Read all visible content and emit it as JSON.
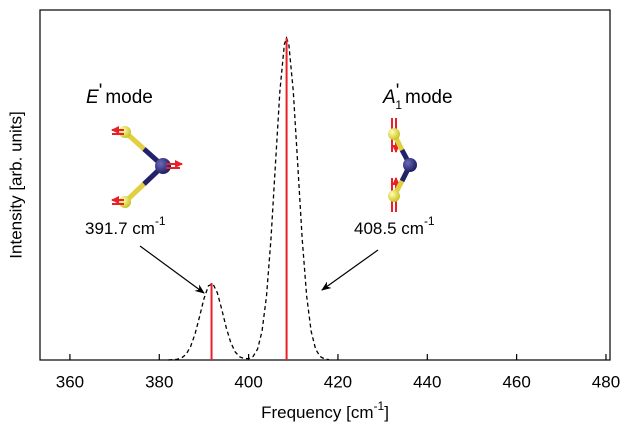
{
  "chart_data": {
    "type": "line",
    "xlabel": {
      "text": "Frequency [cm",
      "sup": "-1",
      "end": "]"
    },
    "ylabel": "Intensity [arb. units]",
    "xlim": [
      353.3,
      480.9
    ],
    "ylim": [
      0,
      1
    ],
    "xticks": [
      360,
      380,
      400,
      420,
      440,
      460,
      480
    ],
    "series": [
      {
        "type": "line",
        "color": "#000000",
        "dashed": true,
        "x": [
          382,
          383,
          384,
          385,
          386,
          387,
          388,
          389,
          390,
          391,
          392,
          393,
          394,
          395,
          396,
          397,
          398,
          399,
          400,
          401,
          402,
          403,
          404,
          405,
          406,
          407,
          408,
          408.5,
          409,
          410,
          411,
          412,
          413,
          414,
          415,
          416,
          417,
          418
        ],
        "values": [
          0,
          0.001,
          0.002,
          0.006,
          0.016,
          0.038,
          0.074,
          0.123,
          0.175,
          0.212,
          0.218,
          0.192,
          0.144,
          0.092,
          0.05,
          0.023,
          0.009,
          0.004,
          0.004,
          0.01,
          0.031,
          0.082,
          0.182,
          0.345,
          0.558,
          0.768,
          0.902,
          0.92,
          0.902,
          0.768,
          0.558,
          0.345,
          0.182,
          0.082,
          0.031,
          0.01,
          0.003,
          0.001
        ]
      },
      {
        "type": "stem",
        "color": "#e8202a",
        "x": [
          391.7,
          408.5
        ],
        "values": [
          0.22,
          0.92
        ]
      }
    ],
    "annotations": [
      {
        "symbol": "E",
        "prime": "'",
        "text": "mode"
      },
      {
        "symbol": "A",
        "prime": "'",
        "sub": "1",
        "text": "mode"
      },
      {
        "text": "391.7 cm",
        "sup": "-1"
      },
      {
        "text": "408.5 cm",
        "sup": "-1"
      }
    ]
  }
}
